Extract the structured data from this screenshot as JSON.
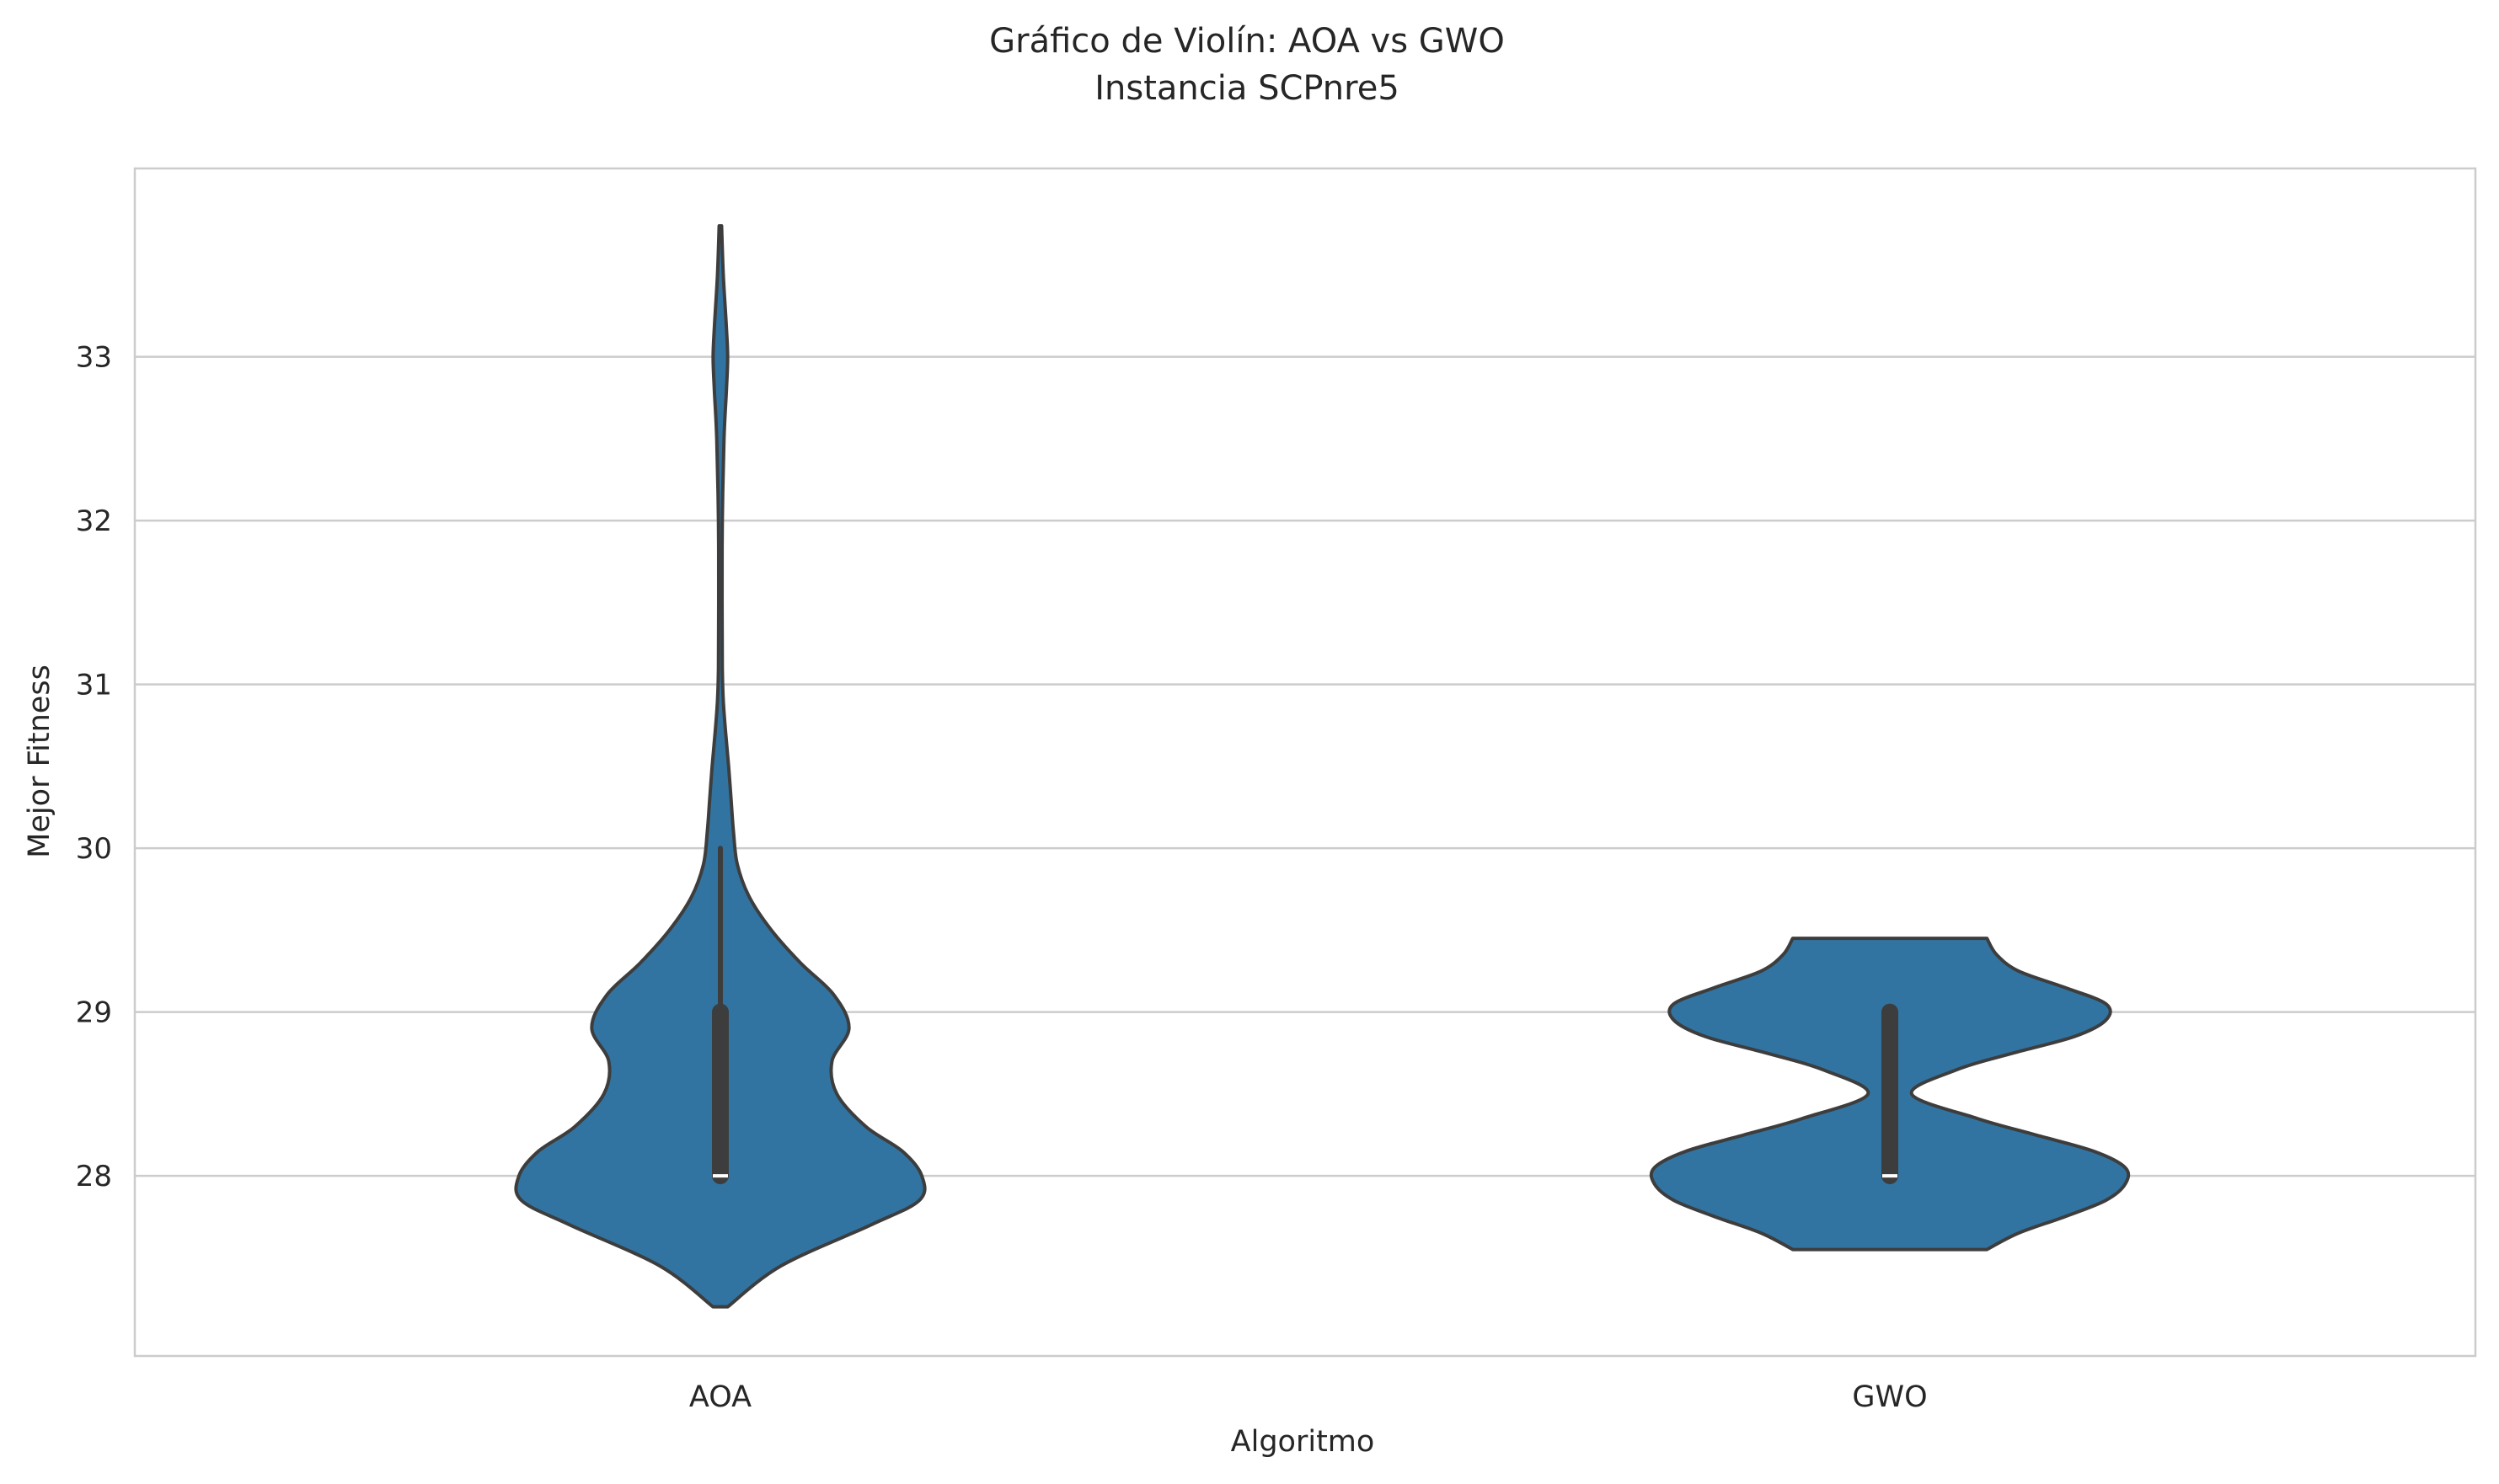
{
  "chart_data": {
    "type": "violin",
    "title": "Gráfico de Violín: AOA vs GWO",
    "subtitle": "Instancia SCPnre5",
    "xlabel": "Algoritmo",
    "ylabel": "Mejor Fitness",
    "categories": [
      "AOA",
      "GWO"
    ],
    "yticks": [
      28,
      29,
      30,
      31,
      32,
      33
    ],
    "ylim": [
      26.9,
      34.15
    ],
    "grid": "horizontal",
    "colors": {
      "fill": "#3274a1",
      "edge": "#3d3d3d",
      "grid": "#cccccc",
      "frame": "#cccccc",
      "median": "#ffffff"
    },
    "violins": [
      {
        "category": "AOA",
        "min": 28,
        "q1": 28,
        "median": 28,
        "q3": 29,
        "max": 30,
        "density_extent": [
          27.2,
          33.8
        ],
        "density": [
          [
            27.2,
            0.03
          ],
          [
            27.45,
            0.25
          ],
          [
            27.7,
            0.62
          ],
          [
            27.85,
            0.82
          ],
          [
            28.0,
            0.83
          ],
          [
            28.15,
            0.75
          ],
          [
            28.3,
            0.6
          ],
          [
            28.5,
            0.48
          ],
          [
            28.7,
            0.46
          ],
          [
            28.9,
            0.53
          ],
          [
            29.1,
            0.47
          ],
          [
            29.3,
            0.33
          ],
          [
            29.5,
            0.21
          ],
          [
            29.7,
            0.12
          ],
          [
            29.9,
            0.07
          ],
          [
            30.1,
            0.054
          ],
          [
            30.3,
            0.044
          ],
          [
            30.5,
            0.034
          ],
          [
            30.7,
            0.022
          ],
          [
            30.9,
            0.012
          ],
          [
            31.1,
            0.008
          ],
          [
            31.5,
            0.007
          ],
          [
            32.0,
            0.008
          ],
          [
            32.5,
            0.015
          ],
          [
            32.8,
            0.025
          ],
          [
            33.0,
            0.03
          ],
          [
            33.2,
            0.024
          ],
          [
            33.5,
            0.012
          ],
          [
            33.8,
            0.005
          ]
        ]
      },
      {
        "category": "GWO",
        "min": 28,
        "q1": 28,
        "median": 28,
        "q3": 29,
        "max": 29,
        "density_extent": [
          27.55,
          29.45
        ],
        "density": [
          [
            27.55,
            0.4
          ],
          [
            27.65,
            0.53
          ],
          [
            27.75,
            0.72
          ],
          [
            27.85,
            0.89
          ],
          [
            27.95,
            0.97
          ],
          [
            28.05,
            0.97
          ],
          [
            28.15,
            0.84
          ],
          [
            28.25,
            0.6
          ],
          [
            28.35,
            0.36
          ],
          [
            28.5,
            0.09
          ],
          [
            28.65,
            0.28
          ],
          [
            28.75,
            0.51
          ],
          [
            28.85,
            0.76
          ],
          [
            28.95,
            0.89
          ],
          [
            29.05,
            0.89
          ],
          [
            29.15,
            0.72
          ],
          [
            29.25,
            0.53
          ],
          [
            29.35,
            0.44
          ],
          [
            29.45,
            0.4
          ]
        ]
      }
    ]
  }
}
